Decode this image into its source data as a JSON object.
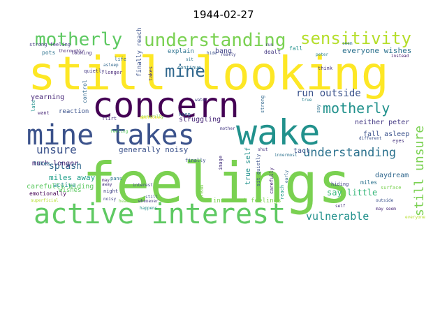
{
  "title": "1944-02-27",
  "words": [
    {
      "text": "feelings",
      "color": "#7ad151"
    },
    {
      "text": "still looking",
      "color": "#fde725"
    },
    {
      "text": "concern",
      "color": "#440154"
    },
    {
      "text": "wake",
      "color": "#21918c"
    },
    {
      "text": "mine takes",
      "color": "#3b528b"
    },
    {
      "text": "active interest",
      "color": "#5ec962"
    },
    {
      "text": "understanding",
      "color": "#7ad151"
    },
    {
      "text": "motherly",
      "color": "#5ec962"
    },
    {
      "text": "sensitivity",
      "color": "#b5de2b"
    },
    {
      "text": "mine",
      "color": "#31688e"
    },
    {
      "text": "motherly",
      "color": "#21918c"
    },
    {
      "text": "understanding",
      "color": "#2c728e"
    },
    {
      "text": "run outside",
      "color": "#3b528b"
    },
    {
      "text": "unsure",
      "color": "#3b528b"
    },
    {
      "text": "still unsure",
      "color": "#7ad151"
    },
    {
      "text": "vulnerable",
      "color": "#21918c"
    },
    {
      "text": "splash",
      "color": "#31688e"
    },
    {
      "text": "generally noisy",
      "color": "#3b528b"
    },
    {
      "text": "say little",
      "color": "#35b779"
    },
    {
      "text": "much longer",
      "color": "#482878"
    },
    {
      "text": "miles away",
      "color": "#1f9e89"
    },
    {
      "text": "carefully hiding",
      "color": "#5ec962"
    },
    {
      "text": "everyone wishes",
      "color": "#2c728e"
    },
    {
      "text": "fall asleep",
      "color": "#3b528b"
    },
    {
      "text": "neither peter",
      "color": "#443983"
    },
    {
      "text": "daydream",
      "color": "#31688e"
    },
    {
      "text": "innermost feelings",
      "color": "#7ad151"
    },
    {
      "text": "true self",
      "color": "#21918c"
    },
    {
      "text": "yearning",
      "color": "#482878"
    },
    {
      "text": "reaction",
      "color": "#3b528b"
    },
    {
      "text": "emotionally",
      "color": "#440154"
    },
    {
      "text": "explain",
      "color": "#2c728e"
    },
    {
      "text": "bang",
      "color": "#414487"
    },
    {
      "text": "struggling",
      "color": "#482878"
    },
    {
      "text": "tact",
      "color": "#3b528b"
    },
    {
      "text": "strong feeling",
      "color": "#443983"
    },
    {
      "text": "thoroughly",
      "color": "#482878"
    },
    {
      "text": "looking",
      "color": "#46337e"
    },
    {
      "text": "pots",
      "color": "#2c728e"
    },
    {
      "text": "life",
      "color": "#31688e"
    },
    {
      "text": "asleep",
      "color": "#31688e"
    },
    {
      "text": "longer",
      "color": "#482878"
    },
    {
      "text": "quietly",
      "color": "#443983"
    },
    {
      "text": "finally reach",
      "color": "#3b528b"
    },
    {
      "text": "takes",
      "color": "#46337e"
    },
    {
      "text": "continue",
      "color": "#2c728e"
    },
    {
      "text": "really",
      "color": "#414487"
    },
    {
      "text": "dealt",
      "color": "#443983"
    },
    {
      "text": "fall",
      "color": "#21918c"
    },
    {
      "text": "peter",
      "color": "#26828e"
    },
    {
      "text": "instead",
      "color": "#481f70"
    },
    {
      "text": "seem",
      "color": "#2c728e"
    },
    {
      "text": "think",
      "color": "#46337e"
    },
    {
      "text": "true",
      "color": "#26828e"
    },
    {
      "text": "strong",
      "color": "#31688e"
    },
    {
      "text": "say",
      "color": "#2c728e"
    },
    {
      "text": "water",
      "color": "#414487"
    },
    {
      "text": "control",
      "color": "#31688e"
    },
    {
      "text": "late",
      "color": "#21918c"
    },
    {
      "text": "want",
      "color": "#482878"
    },
    {
      "text": "flirt",
      "color": "#472d7b"
    },
    {
      "text": "feeling",
      "color": "#5ec962"
    },
    {
      "text": "generally",
      "color": "#7ad151"
    },
    {
      "text": "keep",
      "color": "#31688e"
    },
    {
      "text": "mother",
      "color": "#443983"
    },
    {
      "text": "pans",
      "color": "#2c728e"
    },
    {
      "text": "finally",
      "color": "#3b528b"
    },
    {
      "text": "active",
      "color": "#21918c"
    },
    {
      "text": "wishes",
      "color": "#5ec962"
    },
    {
      "text": "likes",
      "color": "#2c728e"
    },
    {
      "text": "night",
      "color": "#414487"
    },
    {
      "text": "may",
      "color": "#482878"
    },
    {
      "text": "away",
      "color": "#46337e"
    },
    {
      "text": "noisy",
      "color": "#414487"
    },
    {
      "text": "head",
      "color": "#7ad151"
    },
    {
      "text": "interest",
      "color": "#414487"
    },
    {
      "text": "whenever",
      "color": "#443983"
    },
    {
      "text": "still",
      "color": "#3b528b"
    },
    {
      "text": "dream",
      "color": "#7ad151"
    },
    {
      "text": "image",
      "color": "#46337e"
    },
    {
      "text": "sit quietly",
      "color": "#3b528b"
    },
    {
      "text": "carefully",
      "color": "#482878"
    },
    {
      "text": "early",
      "color": "#31688e"
    },
    {
      "text": "shut",
      "color": "#46337e"
    },
    {
      "text": "innermost",
      "color": "#2c728e"
    },
    {
      "text": "reach",
      "color": "#1f9e89"
    },
    {
      "text": "hiding",
      "color": "#414487"
    },
    {
      "text": "miles",
      "color": "#2c728e"
    },
    {
      "text": "different",
      "color": "#3b528b"
    },
    {
      "text": "eyes",
      "color": "#46337e"
    },
    {
      "text": "surface",
      "color": "#7ad151"
    },
    {
      "text": "outside",
      "color": "#3b528b"
    },
    {
      "text": "self",
      "color": "#46337e"
    },
    {
      "text": "may seem",
      "color": "#482878"
    },
    {
      "text": "everyone",
      "color": "#b5de2b"
    },
    {
      "text": "superficial",
      "color": "#b5de2b"
    },
    {
      "text": "happens",
      "color": "#21918c"
    },
    {
      "text": "emotional",
      "color": "#fde725"
    },
    {
      "text": "hide",
      "color": "#3b528b"
    },
    {
      "text": "run",
      "color": "#443983"
    },
    {
      "text": "sit",
      "color": "#2c728e"
    }
  ]
}
